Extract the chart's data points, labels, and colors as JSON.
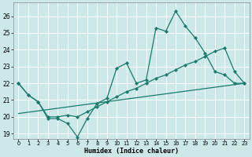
{
  "xlabel": "Humidex (Indice chaleur)",
  "bg_color": "#cce8e8",
  "grid_color": "#ffffff",
  "line_color": "#1a7a6e",
  "xlim": [
    -0.5,
    23.5
  ],
  "ylim": [
    18.7,
    26.8
  ],
  "yticks": [
    19,
    20,
    21,
    22,
    23,
    24,
    25,
    26
  ],
  "xticks": [
    0,
    1,
    2,
    3,
    4,
    5,
    6,
    7,
    8,
    9,
    10,
    11,
    12,
    13,
    14,
    15,
    16,
    17,
    18,
    19,
    20,
    21,
    22,
    23
  ],
  "line1_x": [
    0,
    1,
    2,
    3,
    4,
    5,
    6,
    7,
    8,
    9,
    10,
    11,
    12,
    13,
    14,
    15,
    16,
    17,
    18,
    19,
    20,
    21,
    22,
    23
  ],
  "line1_y": [
    22.0,
    21.3,
    20.9,
    19.9,
    19.9,
    19.6,
    18.8,
    19.9,
    20.8,
    21.1,
    22.9,
    23.2,
    22.0,
    22.2,
    25.3,
    25.1,
    26.3,
    25.4,
    24.7,
    23.8,
    22.7,
    22.5,
    22.0,
    22.0
  ],
  "line2_x": [
    0,
    1,
    2,
    3,
    4,
    5,
    6,
    7,
    8,
    9,
    10,
    11,
    12,
    13,
    14,
    15,
    16,
    17,
    18,
    19,
    20,
    21,
    22,
    23
  ],
  "line2_y": [
    22.0,
    21.3,
    20.9,
    20.0,
    20.0,
    20.1,
    20.0,
    20.3,
    20.6,
    20.9,
    21.2,
    21.5,
    21.7,
    22.0,
    22.3,
    22.5,
    22.8,
    23.1,
    23.3,
    23.6,
    23.9,
    24.1,
    22.7,
    22.0
  ],
  "line3_x": [
    0,
    23
  ],
  "line3_y": [
    20.2,
    22.0
  ]
}
